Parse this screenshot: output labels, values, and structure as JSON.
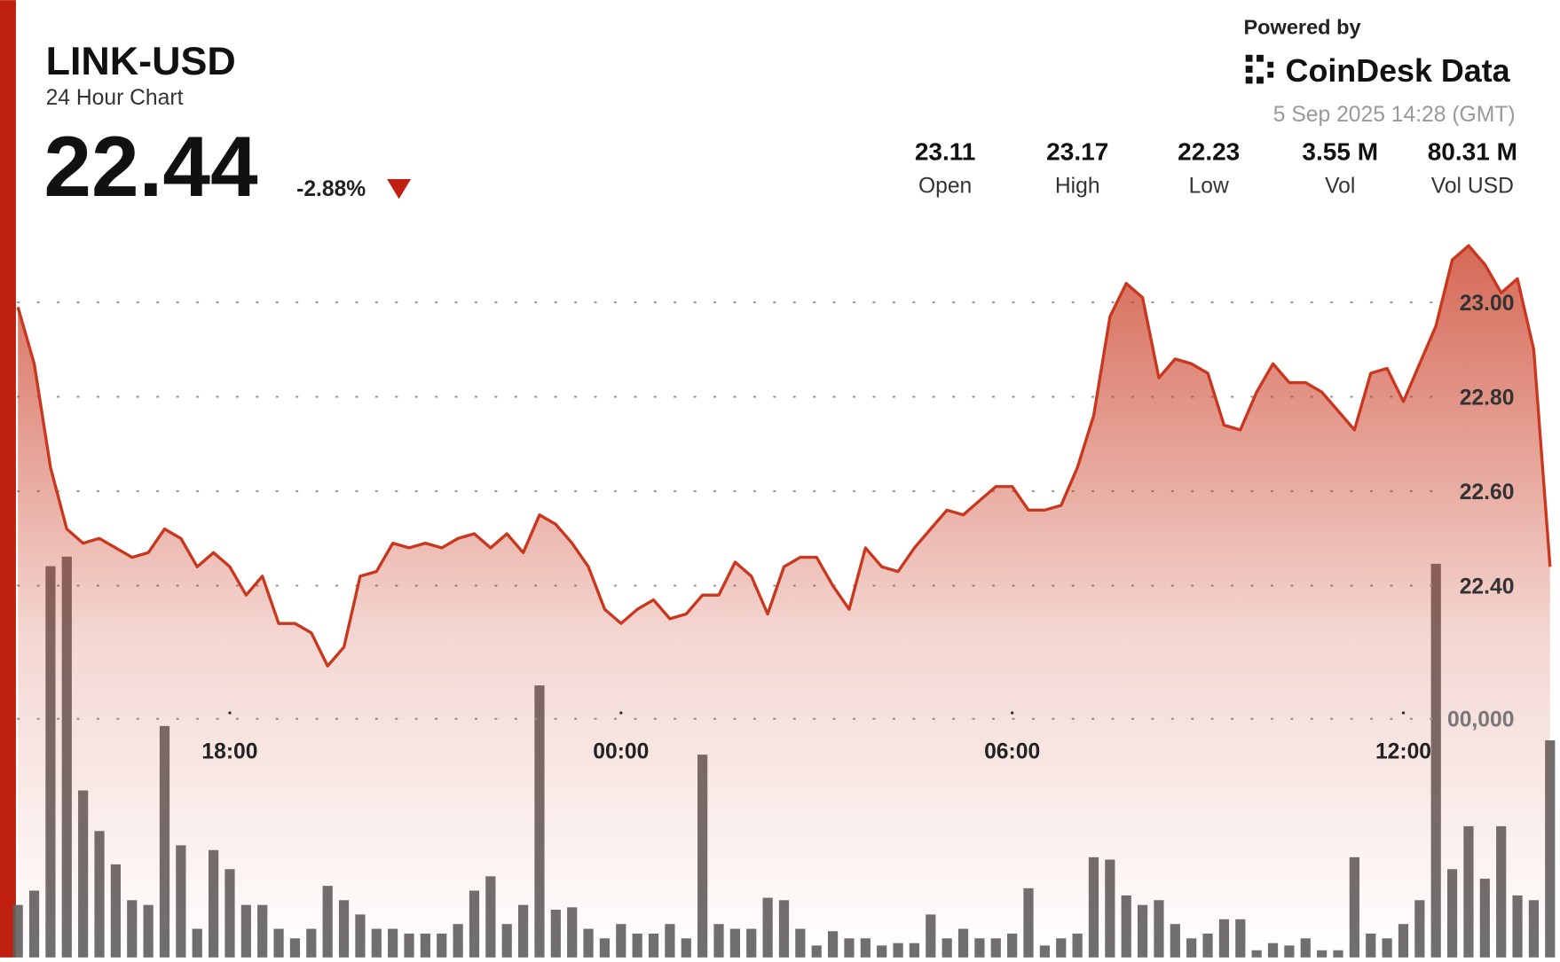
{
  "header": {
    "symbol": "LINK-USD",
    "subtitle": "24 Hour Chart",
    "price": "22.44",
    "change": "-2.88%",
    "powered_by": "Powered by",
    "brand": "CoinDesk Data",
    "timestamp": "5 Sep 2025 14:28 (GMT)",
    "stats": [
      {
        "value": "23.11",
        "label": "Open"
      },
      {
        "value": "23.17",
        "label": "High"
      },
      {
        "value": "22.23",
        "label": "Low"
      },
      {
        "value": "3.55 M",
        "label": "Vol"
      },
      {
        "value": "80.31 M",
        "label": "Vol USD"
      }
    ]
  },
  "chart_data": {
    "type": "line",
    "categories": [
      null,
      null,
      null,
      null,
      null,
      null,
      null,
      null,
      null,
      null,
      null,
      null,
      null,
      "18:00",
      null,
      null,
      null,
      null,
      null,
      null,
      null,
      null,
      null,
      null,
      null,
      null,
      null,
      null,
      null,
      null,
      null,
      null,
      null,
      null,
      null,
      null,
      null,
      "00:00",
      null,
      null,
      null,
      null,
      null,
      null,
      null,
      null,
      null,
      null,
      null,
      null,
      null,
      null,
      null,
      null,
      null,
      null,
      null,
      null,
      null,
      null,
      null,
      "06:00",
      null,
      null,
      null,
      null,
      null,
      null,
      null,
      null,
      null,
      null,
      null,
      null,
      null,
      null,
      null,
      null,
      null,
      null,
      null,
      null,
      null,
      null,
      null,
      "12:00",
      null,
      null,
      null,
      null,
      null,
      null,
      null,
      null,
      null
    ],
    "series": [
      {
        "color": "#c8371e",
        "values": [
          22.99,
          22.87,
          22.65,
          22.52,
          22.49,
          22.5,
          22.48,
          22.46,
          22.47,
          22.52,
          22.5,
          22.44,
          22.47,
          22.44,
          22.38,
          22.42,
          22.32,
          22.32,
          22.3,
          22.23,
          22.27,
          22.42,
          22.43,
          22.49,
          22.48,
          22.49,
          22.48,
          22.5,
          22.51,
          22.48,
          22.51,
          22.47,
          22.55,
          22.53,
          22.49,
          22.44,
          22.35,
          22.32,
          22.35,
          22.37,
          22.33,
          22.34,
          22.38,
          22.38,
          22.45,
          22.42,
          22.34,
          22.44,
          22.46,
          22.46,
          22.4,
          22.35,
          22.48,
          22.44,
          22.43,
          22.48,
          22.52,
          22.56,
          22.55,
          22.58,
          22.61,
          22.61,
          22.56,
          22.56,
          22.57,
          22.65,
          22.76,
          22.97,
          23.04,
          23.01,
          22.84,
          22.88,
          22.87,
          22.85,
          22.74,
          22.73,
          22.81,
          22.87,
          22.83,
          22.83,
          22.81,
          22.77,
          22.73,
          22.85,
          22.86,
          22.79,
          22.87,
          22.95,
          23.09,
          23.12,
          23.08,
          23.02,
          23.05,
          22.9,
          22.44
        ]
      },
      {
        "color": "#5f5f5f",
        "axis": "y2",
        "type": "bar",
        "values": [
          22000,
          28000,
          164000,
          168000,
          70000,
          53000,
          39000,
          24000,
          22000,
          97000,
          47000,
          12000,
          45000,
          37000,
          22000,
          22000,
          12000,
          8000,
          12000,
          30000,
          24000,
          18000,
          12000,
          12000,
          10000,
          10000,
          10000,
          14000,
          28000,
          34000,
          14000,
          22000,
          114000,
          20000,
          21000,
          12000,
          8000,
          14000,
          10000,
          10000,
          14000,
          8000,
          85000,
          14000,
          12000,
          12000,
          25000,
          24000,
          12000,
          5000,
          11000,
          8000,
          8000,
          5000,
          6000,
          6000,
          18000,
          8000,
          12000,
          8000,
          8000,
          10000,
          29000,
          5000,
          8000,
          10000,
          42000,
          41000,
          26000,
          22000,
          24000,
          14000,
          8000,
          10000,
          16000,
          16000,
          3000,
          6000,
          5000,
          8000,
          3000,
          3000,
          42000,
          10000,
          8000,
          14000,
          24000,
          165000,
          37000,
          55000,
          33000,
          55000,
          26000,
          24000,
          91000
        ]
      }
    ],
    "ylim": [
      21.6,
      23.6
    ],
    "yticks": [
      {
        "value": 22.4,
        "label": "22.40"
      },
      {
        "value": 22.6,
        "label": "22.60"
      },
      {
        "value": 22.8,
        "label": "22.80"
      },
      {
        "value": 23,
        "label": "23.00"
      }
    ],
    "y2lim": [
      0,
      400000
    ],
    "y2ticks": [
      {
        "value": 100000,
        "label": "00,000"
      }
    ],
    "grid": true
  }
}
